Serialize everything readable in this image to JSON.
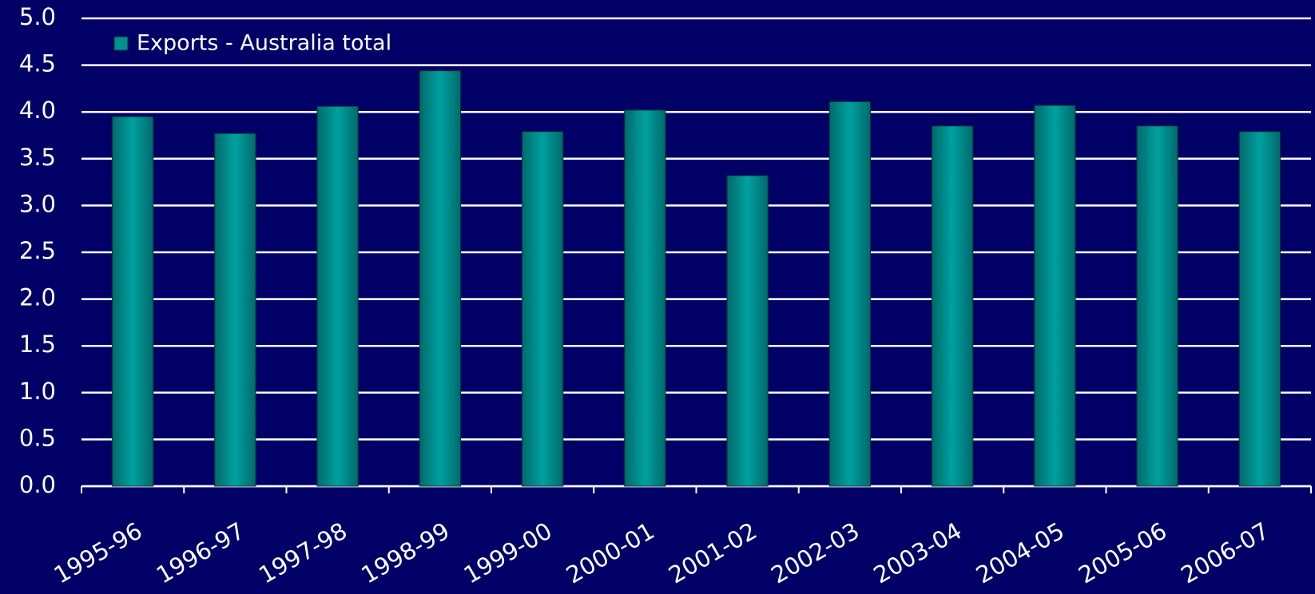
{
  "chart_data": {
    "type": "bar",
    "categories": [
      "1995-96",
      "1996-97",
      "1997-98",
      "1998-99",
      "1999-00",
      "2000-01",
      "2001-02",
      "2002-03",
      "2003-04",
      "2004-05",
      "2005-06",
      "2006-07"
    ],
    "series": [
      {
        "name": "Exports - Australia total",
        "color": "#009090",
        "values": [
          3.95,
          3.77,
          4.06,
          4.44,
          3.79,
          4.02,
          3.32,
          4.11,
          3.85,
          4.07,
          3.85,
          3.79
        ]
      }
    ],
    "ylim": [
      0,
      5
    ],
    "yticks": [
      {
        "value": 0,
        "label": "0.0"
      },
      0.5,
      {
        "value": 1,
        "label": "1.0"
      },
      1.5,
      {
        "value": 2,
        "label": "2.0"
      },
      2.5,
      {
        "value": 3,
        "label": "3.0"
      },
      3.5,
      {
        "value": 4,
        "label": "4.0"
      },
      4.5,
      {
        "value": 5,
        "label": "5.0"
      }
    ],
    "grid": true,
    "legend": "top-left"
  }
}
